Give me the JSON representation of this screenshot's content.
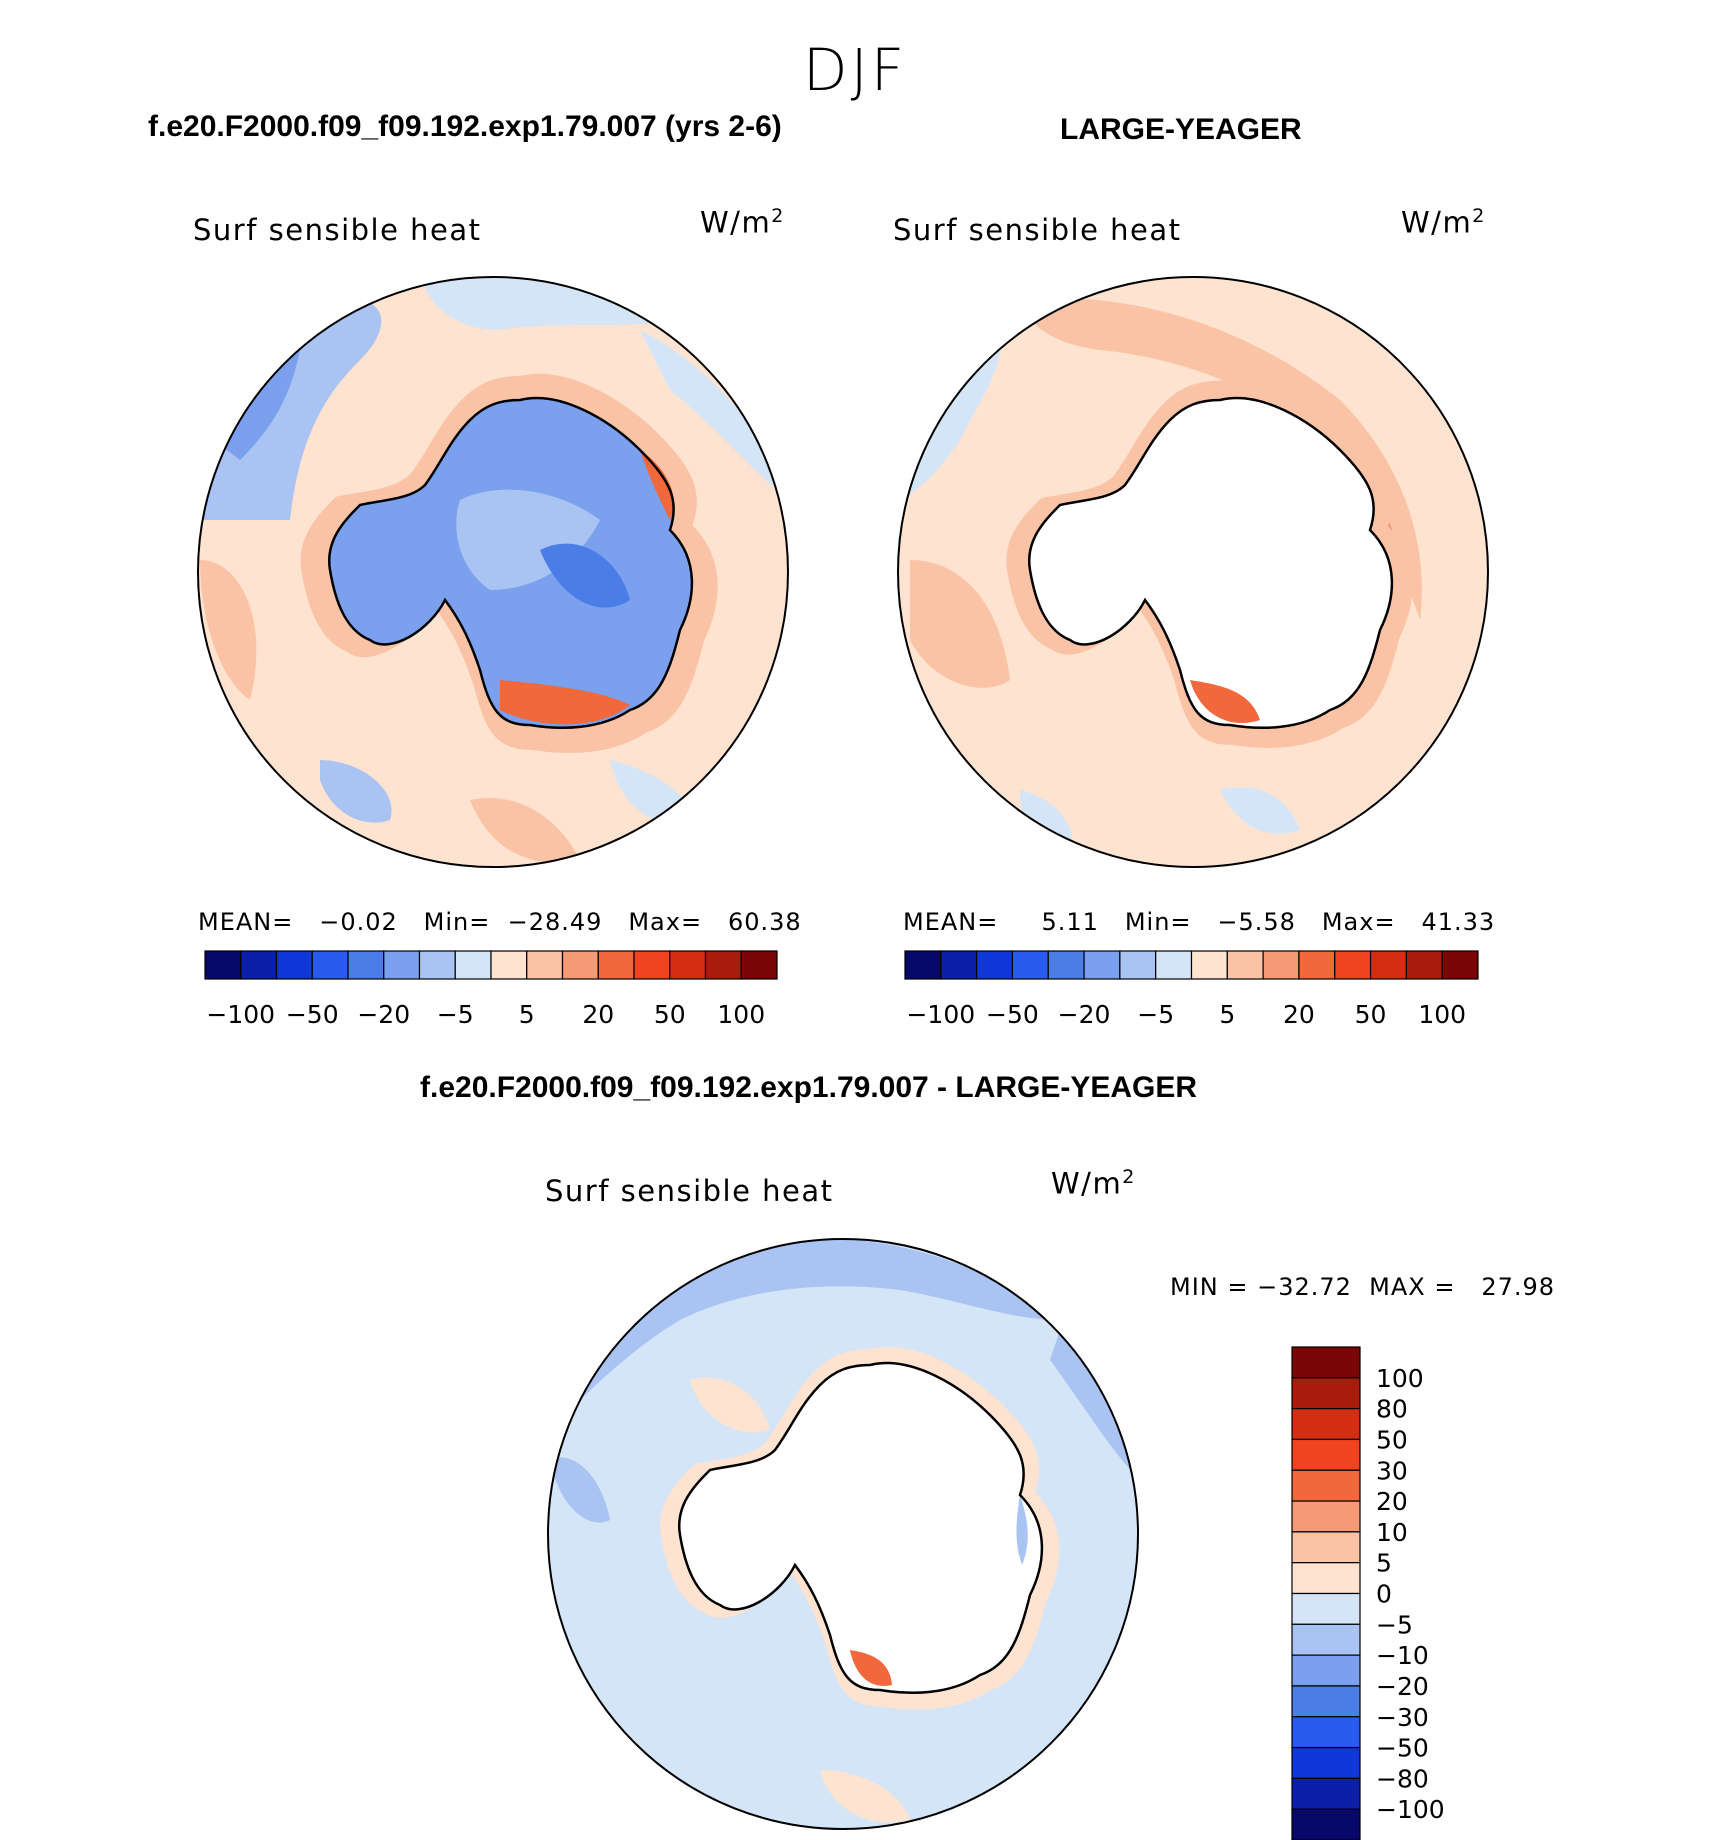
{
  "season": "DJF",
  "panel1": {
    "title": "f.e20.F2000.f09_f09.192.exp1.79.007 (yrs 2-6)",
    "label": "Surf sensible heat",
    "units": "W/m",
    "units_sup": "2",
    "stats": "MEAN=   −0.02   Min=  −28.49   Max=   60.38"
  },
  "panel2": {
    "title": "LARGE-YEAGER",
    "label": "Surf sensible heat",
    "units": "W/m",
    "units_sup": "2",
    "stats": "MEAN=     5.11   Min=   −5.58   Max=   41.33"
  },
  "panel3": {
    "title": "f.e20.F2000.f09_f09.192.exp1.79.007 - LARGE-YEAGER",
    "label": "Surf sensible heat",
    "units": "W/m",
    "units_sup": "2",
    "stats": "MIN = −32.72  MAX =   27.98"
  },
  "colors_14": [
    "#08086b",
    "#0b1fa8",
    "#1038d8",
    "#2a5bf0",
    "#4a7ee6",
    "#7aa0ee",
    "#a9c3f3",
    "#d3e5f7",
    "#fde3d0",
    "#fbc3a6",
    "#f59a74",
    "#f2683d",
    "#f0431f",
    "#d42e12",
    "#a81c0c",
    "#7a0606"
  ],
  "horiz_ticks": [
    "−100",
    "−50",
    "−20",
    "−5",
    "5",
    "20",
    "50",
    "100"
  ],
  "vert_colors": [
    "#08086b",
    "#0b1fa8",
    "#1038d8",
    "#2a5bf0",
    "#4a7ee6",
    "#7aa0ee",
    "#a9c3f3",
    "#d3e5f7",
    "#fde3d0",
    "#fbc3a6",
    "#f59a74",
    "#f2683d",
    "#f0431f",
    "#d42e12",
    "#a81c0c",
    "#7a0606"
  ],
  "vert_ticks": [
    "100",
    "80",
    "50",
    "30",
    "20",
    "10",
    "5",
    "0",
    "−5",
    "−10",
    "−20",
    "−30",
    "−50",
    "−80",
    "−100"
  ]
}
